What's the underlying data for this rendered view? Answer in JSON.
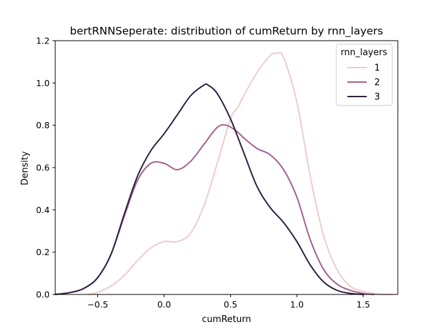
{
  "chart_data": {
    "type": "line",
    "title": "bertRNNSeperate: distribution of cumReturn by rnn_layers",
    "xlabel": "cumReturn",
    "ylabel": "Density",
    "xlim": [
      -0.82,
      1.76
    ],
    "ylim": [
      0,
      1.2
    ],
    "xticks": [
      -0.5,
      0.0,
      0.5,
      1.0,
      1.5
    ],
    "xtick_labels": [
      "−0.5",
      "0.0",
      "0.5",
      "1.0",
      "1.5"
    ],
    "yticks": [
      0.0,
      0.2,
      0.4,
      0.6,
      0.8,
      1.0,
      1.2
    ],
    "ytick_labels": [
      "0.0",
      "0.2",
      "0.4",
      "0.6",
      "0.8",
      "1.0",
      "1.2"
    ],
    "grid": false,
    "legend": {
      "title": "rnn_layers",
      "placement": "top-right"
    },
    "series": [
      {
        "name": "1",
        "color": "#ebcdcb",
        "x": [
          -0.57,
          -0.5,
          -0.4,
          -0.3,
          -0.2,
          -0.1,
          0.0,
          0.1,
          0.2,
          0.3,
          0.4,
          0.5,
          0.55,
          0.6,
          0.7,
          0.8,
          0.85,
          0.9,
          1.0,
          1.1,
          1.2,
          1.3,
          1.4,
          1.5,
          1.6,
          1.72
        ],
        "y": [
          0.0,
          0.01,
          0.04,
          0.09,
          0.16,
          0.22,
          0.25,
          0.25,
          0.29,
          0.42,
          0.62,
          0.83,
          0.88,
          0.94,
          1.05,
          1.13,
          1.14,
          1.12,
          0.91,
          0.56,
          0.28,
          0.12,
          0.04,
          0.015,
          0.003,
          0.0
        ]
      },
      {
        "name": "2",
        "color": "#a35f8d",
        "x": [
          -0.82,
          -0.7,
          -0.6,
          -0.5,
          -0.4,
          -0.3,
          -0.2,
          -0.1,
          0.0,
          0.1,
          0.2,
          0.3,
          0.4,
          0.47,
          0.55,
          0.6,
          0.7,
          0.8,
          0.9,
          1.0,
          1.1,
          1.2,
          1.3,
          1.4,
          1.5,
          1.58
        ],
        "y": [
          0.0,
          0.01,
          0.03,
          0.08,
          0.19,
          0.37,
          0.54,
          0.62,
          0.62,
          0.59,
          0.63,
          0.71,
          0.79,
          0.8,
          0.77,
          0.74,
          0.69,
          0.66,
          0.59,
          0.46,
          0.26,
          0.12,
          0.05,
          0.02,
          0.005,
          0.0
        ]
      },
      {
        "name": "3",
        "color": "#2d1e3e",
        "x": [
          -0.82,
          -0.7,
          -0.6,
          -0.5,
          -0.4,
          -0.3,
          -0.2,
          -0.1,
          0.0,
          0.1,
          0.2,
          0.3,
          0.33,
          0.4,
          0.5,
          0.6,
          0.7,
          0.8,
          0.9,
          1.0,
          1.1,
          1.2,
          1.3,
          1.4,
          1.5
        ],
        "y": [
          0.0,
          0.01,
          0.03,
          0.08,
          0.19,
          0.38,
          0.56,
          0.68,
          0.76,
          0.85,
          0.94,
          0.99,
          0.99,
          0.95,
          0.83,
          0.67,
          0.51,
          0.41,
          0.34,
          0.25,
          0.14,
          0.06,
          0.02,
          0.005,
          0.0
        ]
      }
    ]
  }
}
